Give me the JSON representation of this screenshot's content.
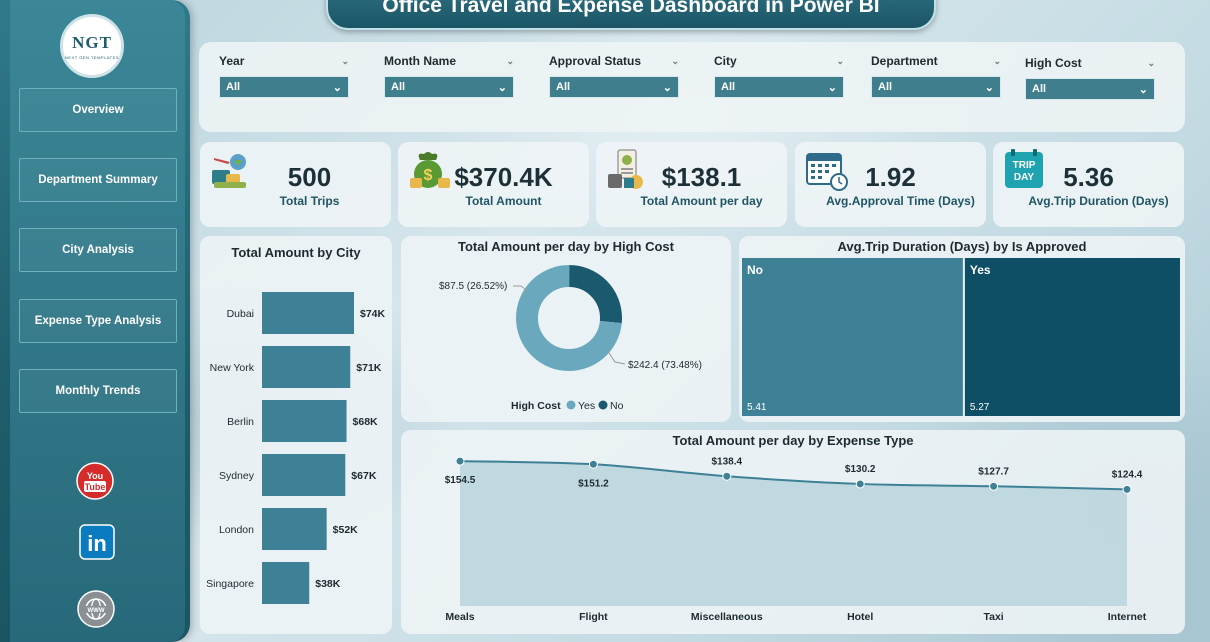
{
  "title": "Office Travel and Expense Dashboard in Power BI",
  "logo": {
    "name": "NGT",
    "sub": "NEXT GEN TEMPLATES"
  },
  "nav": [
    {
      "label": "Overview",
      "active": true
    },
    {
      "label": "Department Summary"
    },
    {
      "label": "City Analysis"
    },
    {
      "label": "Expense Type Analysis"
    },
    {
      "label": "Monthly Trends"
    }
  ],
  "social": {
    "youtube": "You Tube",
    "linkedin": "in"
  },
  "filters": [
    {
      "label": "Year",
      "value": "All"
    },
    {
      "label": "Month Name",
      "value": "All"
    },
    {
      "label": "Approval Status",
      "value": "All"
    },
    {
      "label": "City",
      "value": "All"
    },
    {
      "label": "Department",
      "value": "All"
    },
    {
      "label": "High Cost",
      "value": "All"
    }
  ],
  "kpis": [
    {
      "value": "500",
      "label": "Total Trips",
      "icon": "travel-icon"
    },
    {
      "value": "$370.4K",
      "label": "Total Amount",
      "icon": "money-bag-icon"
    },
    {
      "value": "$138.1",
      "label": "Total Amount per day",
      "icon": "receipt-icon"
    },
    {
      "value": "1.92",
      "label": "Avg.Approval Time (Days)",
      "icon": "calendar-icon"
    },
    {
      "value": "5.36",
      "label": "Avg.Trip Duration (Days)",
      "icon": "trip-day-icon",
      "icon_text": [
        "TRIP",
        "DAY"
      ]
    }
  ],
  "colors": {
    "primary": "#3e8197",
    "dark": "#0e4f66",
    "light": "#6aa9bd"
  },
  "chart_data": [
    {
      "type": "bar",
      "orientation": "horizontal",
      "title": "Total Amount by City",
      "categories": [
        "Dubai",
        "New York",
        "Berlin",
        "Sydney",
        "London",
        "Singapore"
      ],
      "values": [
        74,
        71,
        68,
        67,
        52,
        38
      ],
      "labels": [
        "$74K",
        "$71K",
        "$68K",
        "$67K",
        "$52K",
        "$38K"
      ],
      "unit": "K"
    },
    {
      "type": "pie",
      "variant": "donut",
      "title": "Total Amount per day by High Cost",
      "legend_title": "High Cost",
      "legend": [
        "Yes",
        "No"
      ],
      "slices": [
        {
          "name": "Yes",
          "value": 242.4,
          "pct": 73.48,
          "label": "$242.4 (73.48%)",
          "color": "#6aa9bd"
        },
        {
          "name": "No",
          "value": 87.5,
          "pct": 26.52,
          "label": "$87.5 (26.52%)",
          "color": "#1b5a6e"
        }
      ]
    },
    {
      "type": "treemap",
      "title": "Avg.Trip Duration (Days) by Is Approved",
      "items": [
        {
          "name": "No",
          "value": 5.41,
          "label": "5.41",
          "color": "#3e8197"
        },
        {
          "name": "Yes",
          "value": 5.27,
          "label": "5.27",
          "color": "#0e4f66"
        }
      ]
    },
    {
      "type": "area",
      "title": "Total Amount per day by Expense Type",
      "categories": [
        "Meals",
        "Flight",
        "Miscellaneous",
        "Hotel",
        "Taxi",
        "Internet"
      ],
      "values": [
        154.5,
        151.2,
        138.4,
        130.2,
        127.7,
        124.4
      ],
      "labels": [
        "$154.5",
        "$151.2",
        "$138.4",
        "$130.2",
        "$127.7",
        "$124.4"
      ],
      "ylim": [
        0,
        160
      ]
    }
  ]
}
